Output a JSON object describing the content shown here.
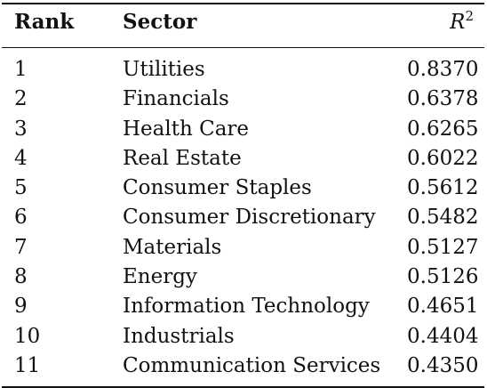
{
  "table": {
    "headers": {
      "rank": "Rank",
      "sector": "Sector",
      "r2_base": "R",
      "r2_exp": "2"
    },
    "rows": [
      {
        "rank": "1",
        "sector": "Utilities",
        "r2": "0.8370"
      },
      {
        "rank": "2",
        "sector": "Financials",
        "r2": "0.6378"
      },
      {
        "rank": "3",
        "sector": "Health Care",
        "r2": "0.6265"
      },
      {
        "rank": "4",
        "sector": "Real Estate",
        "r2": "0.6022"
      },
      {
        "rank": "5",
        "sector": "Consumer Staples",
        "r2": "0.5612"
      },
      {
        "rank": "6",
        "sector": "Consumer Discretionary",
        "r2": "0.5482"
      },
      {
        "rank": "7",
        "sector": "Materials",
        "r2": "0.5127"
      },
      {
        "rank": "8",
        "sector": "Energy",
        "r2": "0.5126"
      },
      {
        "rank": "9",
        "sector": "Information Technology",
        "r2": "0.4651"
      },
      {
        "rank": "10",
        "sector": "Industrials",
        "r2": "0.4404"
      },
      {
        "rank": "11",
        "sector": "Communication Services",
        "r2": "0.4350"
      }
    ]
  }
}
